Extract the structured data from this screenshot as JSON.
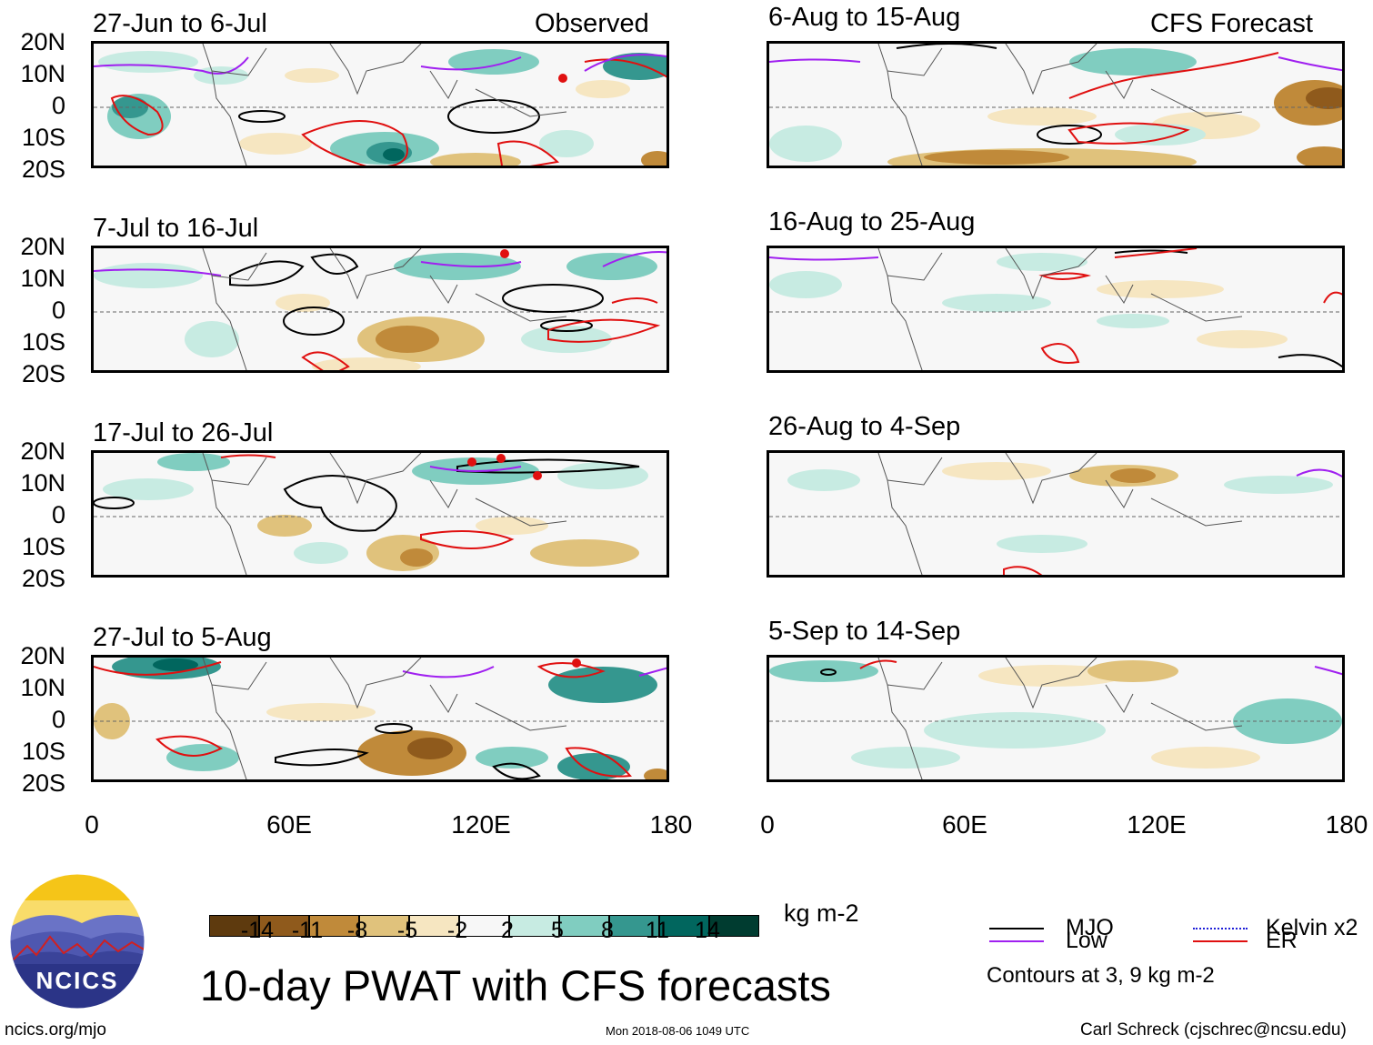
{
  "left_column_label": "Observed",
  "right_column_label": "CFS Forecast",
  "panels_left": [
    {
      "title": "27-Jun to 6-Jul"
    },
    {
      "title": "7-Jul to 16-Jul"
    },
    {
      "title": "17-Jul to 26-Jul"
    },
    {
      "title": "27-Jul to 5-Aug"
    }
  ],
  "panels_right": [
    {
      "title": "6-Aug to 15-Aug"
    },
    {
      "title": "16-Aug to 25-Aug"
    },
    {
      "title": "26-Aug to 4-Sep"
    },
    {
      "title": "5-Sep to 14-Sep"
    }
  ],
  "lat_labels": [
    "20N",
    "10N",
    "0",
    "10S",
    "20S"
  ],
  "lon_labels": [
    "0",
    "60E",
    "120E",
    "180"
  ],
  "colorbar": {
    "colors": [
      "#5e3a0e",
      "#8f5a1c",
      "#c08a3a",
      "#e0c27c",
      "#f6e6c1",
      "#f7f7f7",
      "#c7ebe2",
      "#80cdc0",
      "#35978f",
      "#01665e",
      "#003c30"
    ],
    "labels": [
      "-14",
      "-11",
      "-8",
      "-5",
      "-2",
      "2",
      "5",
      "8",
      "11",
      "14"
    ],
    "units": "kg m-2"
  },
  "legend": {
    "items": [
      {
        "label": "MJO",
        "color": "#000000"
      },
      {
        "label": "Kelvin x2",
        "color": "#1f1fd8"
      },
      {
        "label": "Low",
        "color": "#a020f0"
      },
      {
        "label": "ER",
        "color": "#e01010"
      }
    ],
    "contours_note": "Contours at 3, 9 kg m-2"
  },
  "main_title": "10-day PWAT with CFS forecasts",
  "logo_text": "NCICS",
  "footer_left": "ncics.org/mjo",
  "footer_center": "Mon 2018-08-06 1049 UTC",
  "footer_right": "Carl Schreck (cjschrec@ncsu.edu)"
}
